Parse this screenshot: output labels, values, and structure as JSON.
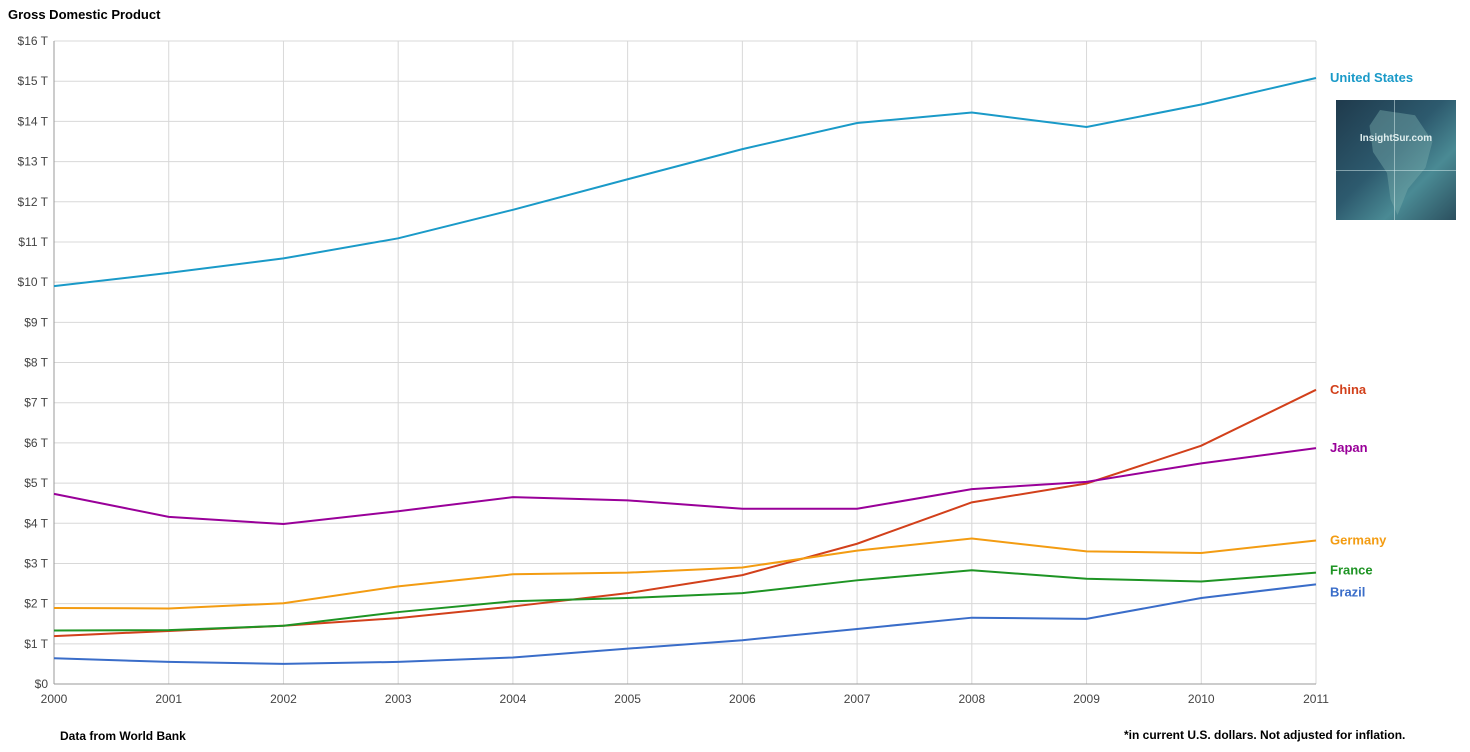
{
  "title": "Gross Domestic Product",
  "source_note": "Data from World Bank",
  "footnote": "*in current U.S. dollars. Not adjusted for inflation.",
  "logo_text": "InsightSur.com",
  "chart_data": {
    "type": "line",
    "x": [
      "2000",
      "2001",
      "2002",
      "2003",
      "2004",
      "2005",
      "2006",
      "2007",
      "2008",
      "2009",
      "2010",
      "2011"
    ],
    "y_ticks": [
      "$0",
      "$1 T",
      "$2 T",
      "$3 T",
      "$4 T",
      "$5 T",
      "$6 T",
      "$7 T",
      "$8 T",
      "$9 T",
      "$10 T",
      "$11 T",
      "$12 T",
      "$13 T",
      "$14 T",
      "$15 T",
      "$16 T"
    ],
    "ylim": [
      0,
      16
    ],
    "grid": true,
    "legend": "right-end labels",
    "series": [
      {
        "name": "United States",
        "color": "#1a9ac8",
        "values": [
          9.9,
          10.23,
          10.59,
          11.09,
          11.8,
          12.56,
          13.31,
          13.96,
          14.22,
          13.86,
          14.42,
          15.08
        ]
      },
      {
        "name": "China",
        "color": "#d2401b",
        "values": [
          1.19,
          1.32,
          1.45,
          1.64,
          1.93,
          2.26,
          2.71,
          3.49,
          4.52,
          4.99,
          5.93,
          7.32
        ]
      },
      {
        "name": "Japan",
        "color": "#990099",
        "values": [
          4.73,
          4.16,
          3.98,
          4.3,
          4.65,
          4.57,
          4.36,
          4.36,
          4.85,
          5.03,
          5.49,
          5.87
        ]
      },
      {
        "name": "Germany",
        "color": "#f39c12",
        "values": [
          1.89,
          1.88,
          2.01,
          2.43,
          2.73,
          2.77,
          2.9,
          3.32,
          3.62,
          3.3,
          3.26,
          3.57
        ]
      },
      {
        "name": "France",
        "color": "#1e9424",
        "values": [
          1.33,
          1.34,
          1.45,
          1.79,
          2.06,
          2.14,
          2.26,
          2.58,
          2.83,
          2.62,
          2.55,
          2.77
        ]
      },
      {
        "name": "Brazil",
        "color": "#3a6dc9",
        "values": [
          0.64,
          0.55,
          0.5,
          0.55,
          0.66,
          0.88,
          1.09,
          1.37,
          1.65,
          1.62,
          2.14,
          2.48
        ]
      }
    ]
  }
}
